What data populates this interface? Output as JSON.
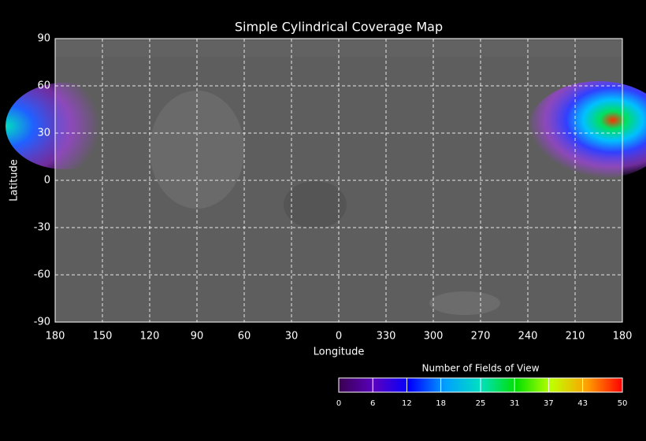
{
  "chart_data": {
    "type": "map",
    "title": "Simple Cylindrical Coverage Map",
    "xlabel": "Longitude",
    "ylabel": "Latitude",
    "xlim": [
      180,
      -180
    ],
    "xticks": [
      180,
      150,
      120,
      90,
      60,
      30,
      0,
      {
        "value": -30,
        "label": "330"
      },
      {
        "value": -60,
        "label": "300"
      },
      {
        "value": -90,
        "label": "270"
      },
      {
        "value": -120,
        "label": "240"
      },
      {
        "value": -150,
        "label": "210"
      },
      {
        "value": -180,
        "label": "180"
      }
    ],
    "ylim": [
      -90,
      90
    ],
    "yticks": [
      -90,
      -60,
      -30,
      0,
      30,
      60,
      90
    ],
    "grid": true,
    "colorbar": {
      "label": "Number of Fields of View",
      "lim": [
        0,
        50
      ],
      "ticks": [
        0,
        6,
        12,
        18,
        25,
        31,
        37,
        43,
        50
      ],
      "colors": [
        "#3a0050",
        "#5a00c0",
        "#0000ff",
        "#00a0ff",
        "#00e0c0",
        "#00e000",
        "#c0ff00",
        "#ffa000",
        "#ff0000"
      ]
    }
  }
}
